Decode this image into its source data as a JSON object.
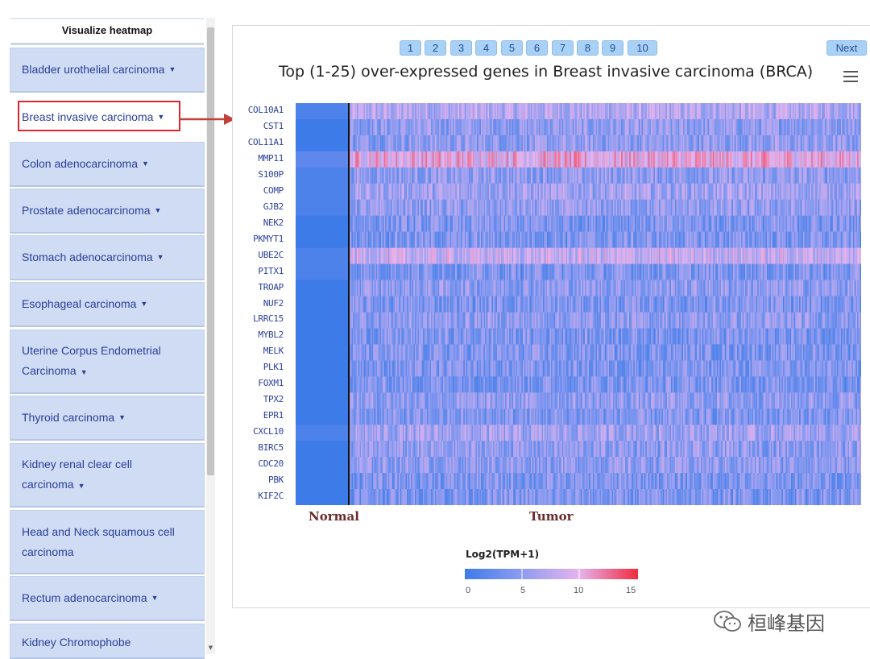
{
  "sidebar": {
    "header": "Visualize heatmap",
    "items": [
      {
        "label": "Bladder urothelial carcinoma",
        "arrow": "▼"
      },
      {
        "label": "Breast invasive carcinoma",
        "arrow": "▼"
      },
      {
        "label": "Colon adenocarcinoma",
        "arrow": "▼"
      },
      {
        "label": "Prostate adenocarcinoma",
        "arrow": "▼"
      },
      {
        "label": "Stomach adenocarcinoma",
        "arrow": "▼"
      },
      {
        "label": "Esophageal carcinoma",
        "arrow": "▼"
      },
      {
        "label": "Uterine Corpus Endometrial Carcinoma",
        "arrow": "▼"
      },
      {
        "label": "Thyroid carcinoma",
        "arrow": "▼"
      },
      {
        "label": "Kidney renal clear cell carcinoma",
        "arrow": "▼"
      },
      {
        "label": "Head and Neck squamous cell carcinoma",
        "arrow": ""
      },
      {
        "label": "Rectum adenocarcinoma",
        "arrow": "▼"
      },
      {
        "label": "Kidney Chromophobe",
        "arrow": ""
      }
    ],
    "selected_index": 1
  },
  "pagination": {
    "pages": [
      "1",
      "2",
      "3",
      "4",
      "5",
      "6",
      "7",
      "8",
      "9",
      "10"
    ],
    "next_label": "Next"
  },
  "heatmap": {
    "title": "Top (1-25) over-expressed genes in Breast invasive carcinoma (BRCA)",
    "genes": [
      "COL10A1",
      "CST1",
      "COL11A1",
      "MMP11",
      "S100P",
      "COMP",
      "GJB2",
      "NEK2",
      "PKMYT1",
      "UBE2C",
      "PITX1",
      "TROAP",
      "NUF2",
      "LRRC15",
      "MYBL2",
      "MELK",
      "PLK1",
      "FOXM1",
      "TPX2",
      "EPR1",
      "CXCL10",
      "BIRC5",
      "CDC20",
      "PBK",
      "KIF2C"
    ],
    "groups": {
      "normal": "Normal",
      "tumor": "Tumor"
    },
    "legend": {
      "title": "Log2(TPM+1)",
      "ticks": [
        "0",
        "5",
        "10",
        "15"
      ],
      "colors": [
        "#3d7be8",
        "#8f9cf0",
        "#e6b4ee",
        "#ef2b3e"
      ]
    }
  },
  "chart_data": {
    "type": "heatmap",
    "title": "Top (1-25) over-expressed genes in Breast invasive carcinoma (BRCA)",
    "rows": [
      "COL10A1",
      "CST1",
      "COL11A1",
      "MMP11",
      "S100P",
      "COMP",
      "GJB2",
      "NEK2",
      "PKMYT1",
      "UBE2C",
      "PITX1",
      "TROAP",
      "NUF2",
      "LRRC15",
      "MYBL2",
      "MELK",
      "PLK1",
      "FOXM1",
      "TPX2",
      "EPR1",
      "CXCL10",
      "BIRC5",
      "CDC20",
      "PBK",
      "KIF2C"
    ],
    "column_groups": [
      "Normal",
      "Tumor"
    ],
    "tumor_row_mean": [
      7,
      5,
      5,
      10,
      5,
      6,
      5,
      4,
      4,
      8,
      4,
      5,
      4,
      5,
      4,
      4,
      4,
      4,
      5,
      4,
      6,
      5,
      5,
      4,
      4
    ],
    "normal_row_mean": [
      1,
      0,
      0,
      2,
      1,
      1,
      1,
      0,
      0,
      1,
      1,
      0,
      0,
      0,
      0,
      0,
      0,
      0,
      0,
      0,
      1,
      0,
      0,
      0,
      0
    ],
    "color_scale": {
      "label": "Log2(TPM+1)",
      "min": 0,
      "max": 15,
      "ticks": [
        0,
        5,
        10,
        15
      ]
    }
  },
  "watermark": {
    "text": "桓峰基因"
  }
}
